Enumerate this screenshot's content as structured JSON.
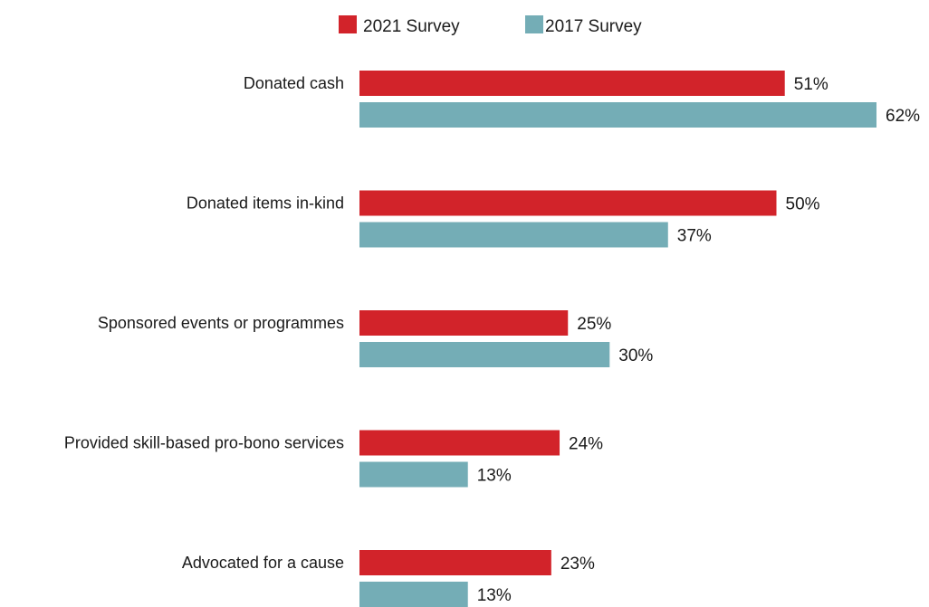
{
  "chart_data": {
    "type": "bar",
    "orientation": "horizontal",
    "categories": [
      "Donated cash",
      "Donated items in-kind",
      "Sponsored events or programmes",
      "Provided skill-based pro-bono services",
      "Advocated for a cause"
    ],
    "series": [
      {
        "name": "2021 Survey",
        "color": "#d2232a",
        "values": [
          51,
          50,
          25,
          24,
          23
        ]
      },
      {
        "name": "2017 Survey",
        "color": "#74adb6",
        "values": [
          62,
          37,
          30,
          13,
          13
        ]
      }
    ],
    "value_suffix": "%",
    "xlim": [
      0,
      62
    ],
    "grid": false,
    "legend_position": "top-center"
  }
}
